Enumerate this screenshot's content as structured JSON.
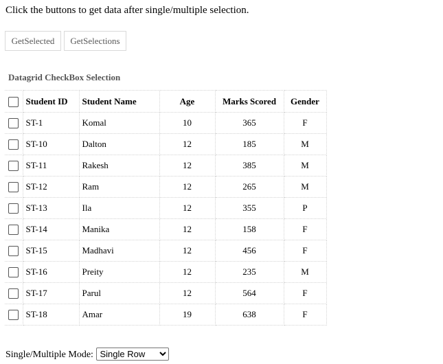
{
  "instructions": "Click the buttons to get data after single/multiple selection.",
  "buttons": {
    "get_selected": "GetSelected",
    "get_selections": "GetSelections"
  },
  "datagrid": {
    "title": "Datagrid CheckBox Selection",
    "columns": {
      "id": "Student ID",
      "name": "Student Name",
      "age": "Age",
      "marks": "Marks Scored",
      "gender": "Gender"
    },
    "rows": [
      {
        "id": "ST-1",
        "name": "Komal",
        "age": "10",
        "marks": "365",
        "gender": "F"
      },
      {
        "id": "ST-10",
        "name": "Dalton",
        "age": "12",
        "marks": "185",
        "gender": "M"
      },
      {
        "id": "ST-11",
        "name": "Rakesh",
        "age": "12",
        "marks": "385",
        "gender": "M"
      },
      {
        "id": "ST-12",
        "name": "Ram",
        "age": "12",
        "marks": "265",
        "gender": "M"
      },
      {
        "id": "ST-13",
        "name": "Ila",
        "age": "12",
        "marks": "355",
        "gender": "P"
      },
      {
        "id": "ST-14",
        "name": "Manika",
        "age": "12",
        "marks": "158",
        "gender": "F"
      },
      {
        "id": "ST-15",
        "name": "Madhavi",
        "age": "12",
        "marks": "456",
        "gender": "F"
      },
      {
        "id": "ST-16",
        "name": "Preity",
        "age": "12",
        "marks": "235",
        "gender": "M"
      },
      {
        "id": "ST-17",
        "name": "Parul",
        "age": "12",
        "marks": "564",
        "gender": "F"
      },
      {
        "id": "ST-18",
        "name": "Amar",
        "age": "19",
        "marks": "638",
        "gender": "F"
      }
    ]
  },
  "mode": {
    "label": "Single/Multiple Mode:",
    "selected": "Single Row"
  }
}
